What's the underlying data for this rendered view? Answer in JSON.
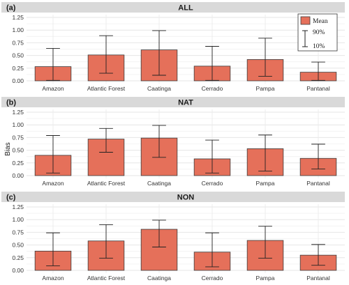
{
  "chart_data": {
    "type": "bar",
    "ylabel": "Bias",
    "ylim": [
      0,
      1.25
    ],
    "yticks": [
      "0.00",
      "0.25",
      "0.50",
      "0.75",
      "1.00",
      "1.25"
    ],
    "categories": [
      "Amazon",
      "Atlantic Forest",
      "Caatinga",
      "Cerrado",
      "Pampa",
      "Pantanal"
    ],
    "bar_color": "#e5705a",
    "bar_edge": "#3a3a3a",
    "grid": true,
    "legend": {
      "placement": "top-right of panel (a)",
      "mean_label": "Mean",
      "upper_label": "90%",
      "lower_label": "10%"
    },
    "panels": [
      {
        "tag": "(a)",
        "title": "ALL",
        "values": [
          0.28,
          0.51,
          0.61,
          0.29,
          0.42,
          0.17
        ],
        "p10": [
          0.01,
          0.15,
          0.11,
          0.01,
          0.09,
          0.01
        ],
        "p90": [
          0.64,
          0.89,
          0.99,
          0.68,
          0.84,
          0.37
        ]
      },
      {
        "tag": "(b)",
        "title": "NAT",
        "values": [
          0.4,
          0.72,
          0.74,
          0.33,
          0.53,
          0.34
        ],
        "p10": [
          0.05,
          0.46,
          0.36,
          0.05,
          0.09,
          0.13
        ],
        "p90": [
          0.79,
          0.93,
          0.99,
          0.7,
          0.8,
          0.62
        ]
      },
      {
        "tag": "(c)",
        "title": "NON",
        "values": [
          0.38,
          0.58,
          0.81,
          0.36,
          0.59,
          0.3
        ],
        "p10": [
          0.09,
          0.24,
          0.46,
          0.07,
          0.24,
          0.1
        ],
        "p90": [
          0.74,
          0.9,
          0.99,
          0.74,
          0.87,
          0.51
        ]
      }
    ]
  }
}
